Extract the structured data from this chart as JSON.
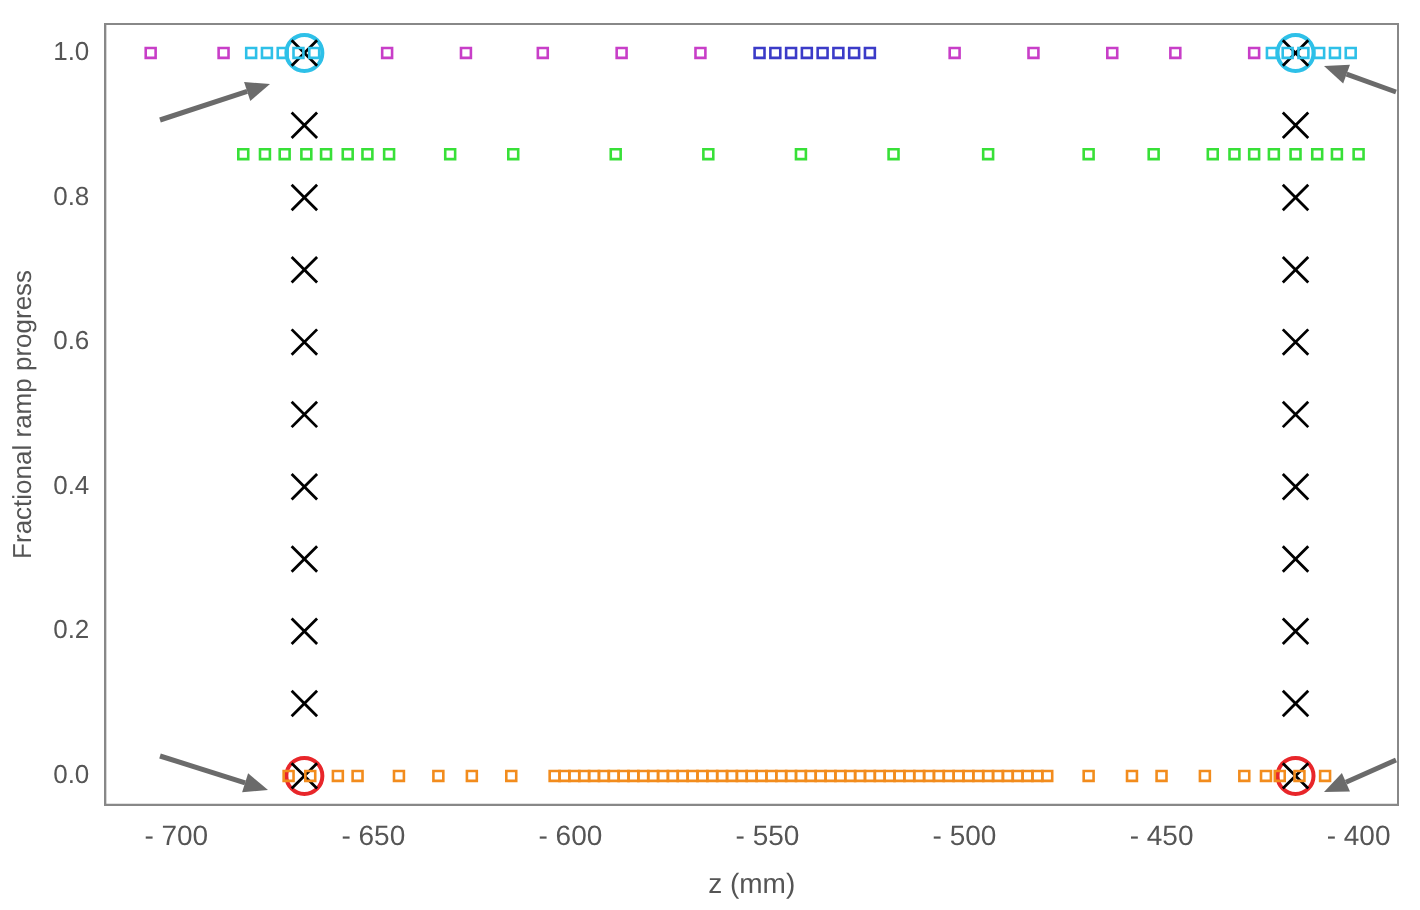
{
  "chart_data": {
    "type": "scatter",
    "xlabel": "z (mm)",
    "ylabel": "Fractional ramp progress",
    "xlim": [
      -718,
      -390
    ],
    "ylim": [
      -0.04,
      1.04
    ],
    "xticks": [
      {
        "value": -700,
        "label": "- 700"
      },
      {
        "value": -650,
        "label": "- 650"
      },
      {
        "value": -600,
        "label": "- 600"
      },
      {
        "value": -550,
        "label": "- 550"
      },
      {
        "value": -500,
        "label": "- 500"
      },
      {
        "value": -450,
        "label": "- 450"
      },
      {
        "value": -400,
        "label": "- 400"
      }
    ],
    "yticks": [
      {
        "value": 0,
        "label": "0.0"
      },
      {
        "value": 0.2,
        "label": "0.2"
      },
      {
        "value": 0.4,
        "label": "0.4"
      },
      {
        "value": 0.6,
        "label": "0.6"
      },
      {
        "value": 0.8,
        "label": "0.8"
      },
      {
        "value": 1,
        "label": "1.0"
      }
    ],
    "grid": false,
    "legend": false,
    "series": [
      {
        "color": "#f28c1d",
        "marker": "square",
        "x": [
          -671.5,
          -666,
          -659,
          -654,
          -643.5,
          -633.5,
          -625,
          -615,
          -604,
          -601.5,
          -599,
          -596.5,
          -594,
          -591.5,
          -589,
          -586.5,
          -584,
          -581.5,
          -579,
          -576.5,
          -574,
          -571.5,
          -569,
          -566.5,
          -564,
          -561.5,
          -559,
          -556.5,
          -554,
          -551.5,
          -549,
          -546.5,
          -544,
          -541.5,
          -539,
          -536.5,
          -534,
          -531.5,
          -529,
          -526.5,
          -524,
          -521.5,
          -519,
          -516.5,
          -514,
          -511.5,
          -509,
          -506.5,
          -504,
          -501.5,
          -499,
          -496.5,
          -494,
          -491.5,
          -489,
          -486.5,
          -484,
          -481.5,
          -479,
          -468.5,
          -457.5,
          -450,
          -439,
          -429,
          -423.5,
          -420,
          -415,
          -408.5
        ],
        "values": [
          0,
          0,
          0,
          0,
          0,
          0,
          0,
          0,
          0,
          0,
          0,
          0,
          0,
          0,
          0,
          0,
          0,
          0,
          0,
          0,
          0,
          0,
          0,
          0,
          0,
          0,
          0,
          0,
          0,
          0,
          0,
          0,
          0,
          0,
          0,
          0,
          0,
          0,
          0,
          0,
          0,
          0,
          0,
          0,
          0,
          0,
          0,
          0,
          0,
          0,
          0,
          0,
          0,
          0,
          0,
          0,
          0,
          0,
          0,
          0,
          0,
          0,
          0,
          0,
          0,
          0,
          0,
          0
        ]
      },
      {
        "color": "#38e038",
        "marker": "square",
        "x": [
          -683,
          -677.5,
          -672.5,
          -667,
          -662,
          -656.5,
          -651.5,
          -646,
          -630.5,
          -614.5,
          -588.5,
          -565,
          -541.5,
          -518,
          -494,
          -468.5,
          -452,
          -437,
          -431.5,
          -426.5,
          -421.5,
          -416,
          -410.5,
          -405.5,
          -400
        ],
        "values": [
          0.86,
          0.86,
          0.86,
          0.86,
          0.86,
          0.86,
          0.86,
          0.86,
          0.86,
          0.86,
          0.86,
          0.86,
          0.86,
          0.86,
          0.86,
          0.86,
          0.86,
          0.86,
          0.86,
          0.86,
          0.86,
          0.86,
          0.86,
          0.86,
          0.86
        ]
      },
      {
        "color": "#c83ec8",
        "marker": "square",
        "x": [
          -706.5,
          -688,
          -646.5,
          -626.5,
          -607,
          -587,
          -567,
          -502.5,
          -482.5,
          -462.5,
          -446.5,
          -426.5
        ],
        "values": [
          1,
          1,
          1,
          1,
          1,
          1,
          1,
          1,
          1,
          1,
          1,
          1
        ]
      },
      {
        "color": "#3b3bc8",
        "marker": "square",
        "x": [
          -552,
          -548,
          -544,
          -540,
          -536,
          -532,
          -528,
          -524
        ],
        "values": [
          1,
          1,
          1,
          1,
          1,
          1,
          1,
          1
        ]
      },
      {
        "color": "#2ec0e8",
        "marker": "square",
        "x": [
          -681,
          -677,
          -673,
          -669,
          -665,
          -422,
          -418,
          -414,
          -410,
          -406,
          -402
        ],
        "values": [
          1,
          1,
          1,
          1,
          1,
          1,
          1,
          1,
          1,
          1,
          1
        ]
      },
      {
        "color": "#000000",
        "marker": "cross",
        "x": [
          -667.5,
          -667.5,
          -667.5,
          -667.5,
          -667.5,
          -667.5,
          -667.5,
          -667.5,
          -667.5,
          -667.5,
          -667.5,
          -416,
          -416,
          -416,
          -416,
          -416,
          -416,
          -416,
          -416,
          -416,
          -416,
          -416
        ],
        "values": [
          0,
          0.1,
          0.2,
          0.3,
          0.4,
          0.5,
          0.6,
          0.7,
          0.8,
          0.9,
          1,
          0,
          0.1,
          0.2,
          0.3,
          0.4,
          0.5,
          0.6,
          0.7,
          0.8,
          0.9,
          1
        ]
      },
      {
        "color": "#e8262a",
        "marker": "circle",
        "x": [
          -667.5,
          -416
        ],
        "values": [
          0,
          0
        ]
      },
      {
        "color": "#2ec0e8",
        "marker": "circle",
        "x": [
          -667.5,
          -416
        ],
        "values": [
          1,
          1
        ]
      }
    ]
  }
}
